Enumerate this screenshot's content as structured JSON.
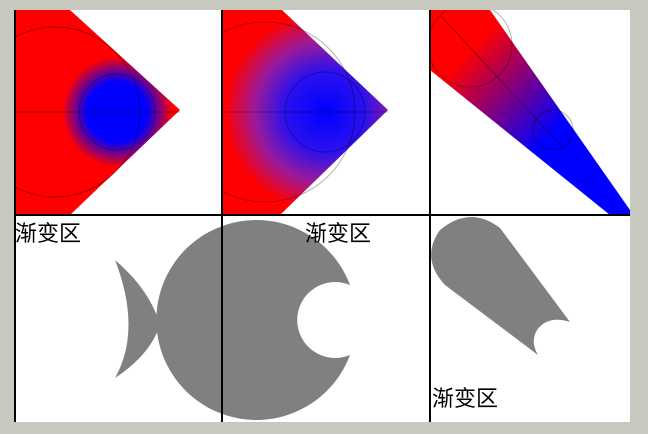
{
  "labels": {
    "cell_1": "渐变区",
    "cell_2": "渐变区",
    "cell_3": "渐变区"
  },
  "colors": {
    "background": "#c8c9be",
    "canvas": "#ffffff",
    "gradient_start": "#ff0000",
    "gradient_end": "#0000ff",
    "shape_fill": "#808080",
    "grid_line": "#000000"
  }
}
